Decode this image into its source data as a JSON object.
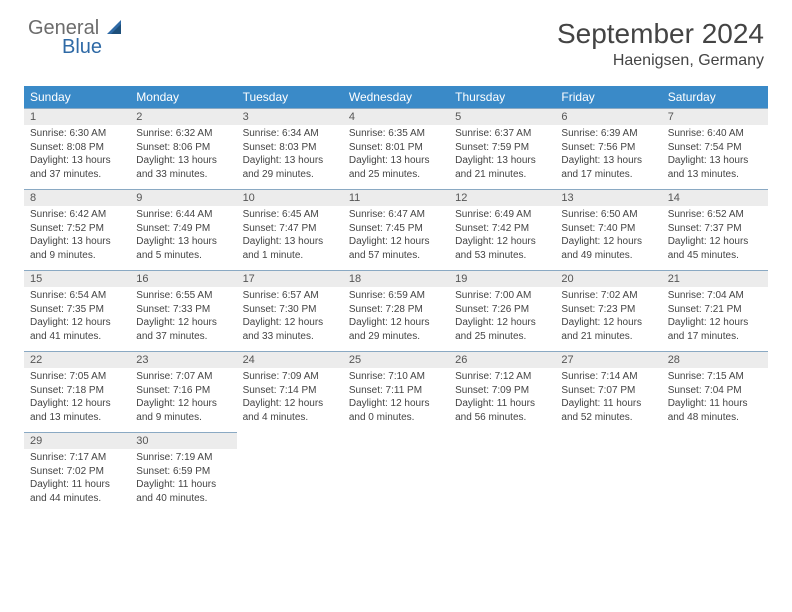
{
  "brand": {
    "part1": "General",
    "part2": "Blue"
  },
  "title": "September 2024",
  "location": "Haenigsen, Germany",
  "dow": [
    "Sunday",
    "Monday",
    "Tuesday",
    "Wednesday",
    "Thursday",
    "Friday",
    "Saturday"
  ],
  "colors": {
    "header_bg": "#3a8ac8",
    "daynum_bg": "#ececec",
    "rule": "#8aa9c3"
  },
  "weeks": [
    [
      {
        "n": "1",
        "sunrise": "Sunrise: 6:30 AM",
        "sunset": "Sunset: 8:08 PM",
        "day1": "Daylight: 13 hours",
        "day2": "and 37 minutes."
      },
      {
        "n": "2",
        "sunrise": "Sunrise: 6:32 AM",
        "sunset": "Sunset: 8:06 PM",
        "day1": "Daylight: 13 hours",
        "day2": "and 33 minutes."
      },
      {
        "n": "3",
        "sunrise": "Sunrise: 6:34 AM",
        "sunset": "Sunset: 8:03 PM",
        "day1": "Daylight: 13 hours",
        "day2": "and 29 minutes."
      },
      {
        "n": "4",
        "sunrise": "Sunrise: 6:35 AM",
        "sunset": "Sunset: 8:01 PM",
        "day1": "Daylight: 13 hours",
        "day2": "and 25 minutes."
      },
      {
        "n": "5",
        "sunrise": "Sunrise: 6:37 AM",
        "sunset": "Sunset: 7:59 PM",
        "day1": "Daylight: 13 hours",
        "day2": "and 21 minutes."
      },
      {
        "n": "6",
        "sunrise": "Sunrise: 6:39 AM",
        "sunset": "Sunset: 7:56 PM",
        "day1": "Daylight: 13 hours",
        "day2": "and 17 minutes."
      },
      {
        "n": "7",
        "sunrise": "Sunrise: 6:40 AM",
        "sunset": "Sunset: 7:54 PM",
        "day1": "Daylight: 13 hours",
        "day2": "and 13 minutes."
      }
    ],
    [
      {
        "n": "8",
        "sunrise": "Sunrise: 6:42 AM",
        "sunset": "Sunset: 7:52 PM",
        "day1": "Daylight: 13 hours",
        "day2": "and 9 minutes."
      },
      {
        "n": "9",
        "sunrise": "Sunrise: 6:44 AM",
        "sunset": "Sunset: 7:49 PM",
        "day1": "Daylight: 13 hours",
        "day2": "and 5 minutes."
      },
      {
        "n": "10",
        "sunrise": "Sunrise: 6:45 AM",
        "sunset": "Sunset: 7:47 PM",
        "day1": "Daylight: 13 hours",
        "day2": "and 1 minute."
      },
      {
        "n": "11",
        "sunrise": "Sunrise: 6:47 AM",
        "sunset": "Sunset: 7:45 PM",
        "day1": "Daylight: 12 hours",
        "day2": "and 57 minutes."
      },
      {
        "n": "12",
        "sunrise": "Sunrise: 6:49 AM",
        "sunset": "Sunset: 7:42 PM",
        "day1": "Daylight: 12 hours",
        "day2": "and 53 minutes."
      },
      {
        "n": "13",
        "sunrise": "Sunrise: 6:50 AM",
        "sunset": "Sunset: 7:40 PM",
        "day1": "Daylight: 12 hours",
        "day2": "and 49 minutes."
      },
      {
        "n": "14",
        "sunrise": "Sunrise: 6:52 AM",
        "sunset": "Sunset: 7:37 PM",
        "day1": "Daylight: 12 hours",
        "day2": "and 45 minutes."
      }
    ],
    [
      {
        "n": "15",
        "sunrise": "Sunrise: 6:54 AM",
        "sunset": "Sunset: 7:35 PM",
        "day1": "Daylight: 12 hours",
        "day2": "and 41 minutes."
      },
      {
        "n": "16",
        "sunrise": "Sunrise: 6:55 AM",
        "sunset": "Sunset: 7:33 PM",
        "day1": "Daylight: 12 hours",
        "day2": "and 37 minutes."
      },
      {
        "n": "17",
        "sunrise": "Sunrise: 6:57 AM",
        "sunset": "Sunset: 7:30 PM",
        "day1": "Daylight: 12 hours",
        "day2": "and 33 minutes."
      },
      {
        "n": "18",
        "sunrise": "Sunrise: 6:59 AM",
        "sunset": "Sunset: 7:28 PM",
        "day1": "Daylight: 12 hours",
        "day2": "and 29 minutes."
      },
      {
        "n": "19",
        "sunrise": "Sunrise: 7:00 AM",
        "sunset": "Sunset: 7:26 PM",
        "day1": "Daylight: 12 hours",
        "day2": "and 25 minutes."
      },
      {
        "n": "20",
        "sunrise": "Sunrise: 7:02 AM",
        "sunset": "Sunset: 7:23 PM",
        "day1": "Daylight: 12 hours",
        "day2": "and 21 minutes."
      },
      {
        "n": "21",
        "sunrise": "Sunrise: 7:04 AM",
        "sunset": "Sunset: 7:21 PM",
        "day1": "Daylight: 12 hours",
        "day2": "and 17 minutes."
      }
    ],
    [
      {
        "n": "22",
        "sunrise": "Sunrise: 7:05 AM",
        "sunset": "Sunset: 7:18 PM",
        "day1": "Daylight: 12 hours",
        "day2": "and 13 minutes."
      },
      {
        "n": "23",
        "sunrise": "Sunrise: 7:07 AM",
        "sunset": "Sunset: 7:16 PM",
        "day1": "Daylight: 12 hours",
        "day2": "and 9 minutes."
      },
      {
        "n": "24",
        "sunrise": "Sunrise: 7:09 AM",
        "sunset": "Sunset: 7:14 PM",
        "day1": "Daylight: 12 hours",
        "day2": "and 4 minutes."
      },
      {
        "n": "25",
        "sunrise": "Sunrise: 7:10 AM",
        "sunset": "Sunset: 7:11 PM",
        "day1": "Daylight: 12 hours",
        "day2": "and 0 minutes."
      },
      {
        "n": "26",
        "sunrise": "Sunrise: 7:12 AM",
        "sunset": "Sunset: 7:09 PM",
        "day1": "Daylight: 11 hours",
        "day2": "and 56 minutes."
      },
      {
        "n": "27",
        "sunrise": "Sunrise: 7:14 AM",
        "sunset": "Sunset: 7:07 PM",
        "day1": "Daylight: 11 hours",
        "day2": "and 52 minutes."
      },
      {
        "n": "28",
        "sunrise": "Sunrise: 7:15 AM",
        "sunset": "Sunset: 7:04 PM",
        "day1": "Daylight: 11 hours",
        "day2": "and 48 minutes."
      }
    ],
    [
      {
        "n": "29",
        "sunrise": "Sunrise: 7:17 AM",
        "sunset": "Sunset: 7:02 PM",
        "day1": "Daylight: 11 hours",
        "day2": "and 44 minutes."
      },
      {
        "n": "30",
        "sunrise": "Sunrise: 7:19 AM",
        "sunset": "Sunset: 6:59 PM",
        "day1": "Daylight: 11 hours",
        "day2": "and 40 minutes."
      },
      null,
      null,
      null,
      null,
      null
    ]
  ]
}
